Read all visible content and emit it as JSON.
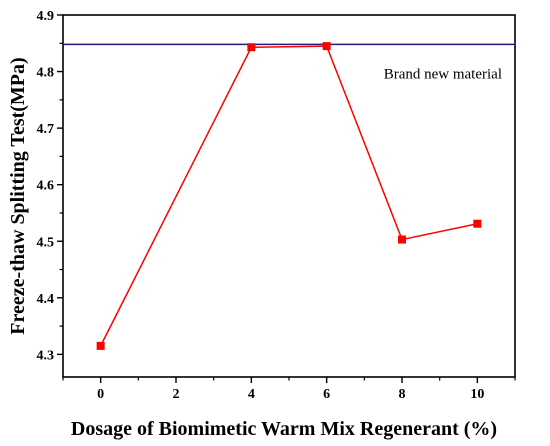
{
  "chart_data": {
    "type": "line",
    "title": "",
    "xlabel": "Dosage of Biomimetic Warm Mix Regenerant (%)",
    "ylabel": "Freeze-thaw Splitting Test(MPa)",
    "xlim": [
      -1,
      11
    ],
    "ylim": [
      4.26,
      4.9
    ],
    "x_ticks": [
      0,
      2,
      4,
      6,
      8,
      10
    ],
    "y_ticks": [
      4.3,
      4.4,
      4.5,
      4.6,
      4.7,
      4.8,
      4.9
    ],
    "x_tick_labels": [
      "0",
      "2",
      "4",
      "6",
      "8",
      "10"
    ],
    "y_tick_labels": [
      "4.3",
      "4.4",
      "4.5",
      "4.6",
      "4.7",
      "4.8",
      "4.9"
    ],
    "grid": false,
    "series": [
      {
        "x": [
          0,
          4,
          6,
          8,
          10
        ],
        "y": [
          4.315,
          4.843,
          4.845,
          4.503,
          4.531
        ],
        "color": "#ff0000",
        "marker": "square"
      }
    ],
    "reference_line": {
      "y": 4.848,
      "color": "#1f1f7a",
      "label": "Brand new material"
    }
  }
}
